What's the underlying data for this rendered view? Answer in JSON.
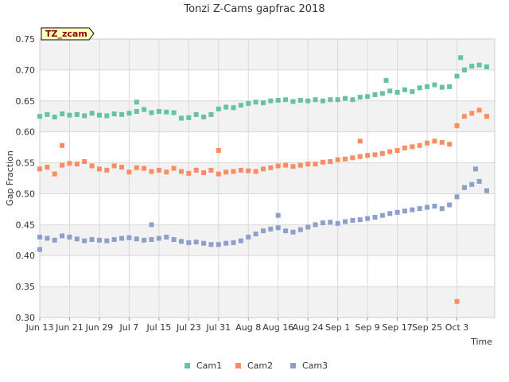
{
  "chart_data": {
    "type": "scatter",
    "title": "Tonzi Z-Cams gapfrac 2018",
    "badge": "TZ_zcam",
    "xlabel": "Time",
    "ylabel": "Gap Fraction",
    "ylim": [
      0.3,
      0.75
    ],
    "y_ticks": [
      "0.30",
      "0.35",
      "0.40",
      "0.45",
      "0.50",
      "0.55",
      "0.60",
      "0.65",
      "0.70",
      "0.75"
    ],
    "x_range_days": [
      "2018-06-13",
      "2018-10-11"
    ],
    "x_ticks": [
      {
        "label": "Jun 13",
        "date": "2018-06-13"
      },
      {
        "label": "Jun 21",
        "date": "2018-06-21"
      },
      {
        "label": "Jun 29",
        "date": "2018-06-29"
      },
      {
        "label": "Jul 7",
        "date": "2018-07-07"
      },
      {
        "label": "Jul 15",
        "date": "2018-07-15"
      },
      {
        "label": "Jul 23",
        "date": "2018-07-23"
      },
      {
        "label": "Jul 31",
        "date": "2018-07-31"
      },
      {
        "label": "Aug 8",
        "date": "2018-08-08"
      },
      {
        "label": "Aug 16",
        "date": "2018-08-16"
      },
      {
        "label": "Aug 24",
        "date": "2018-08-24"
      },
      {
        "label": "Sep 1",
        "date": "2018-09-01"
      },
      {
        "label": "Sep 9",
        "date": "2018-09-09"
      },
      {
        "label": "Sep 17",
        "date": "2018-09-17"
      },
      {
        "label": "Sep 25",
        "date": "2018-09-25"
      },
      {
        "label": "Oct 3",
        "date": "2018-10-03"
      }
    ],
    "grid": true,
    "legend_position": "bottom",
    "series": [
      {
        "name": "Cam1",
        "color": "#66c2a5",
        "points": [
          [
            "2018-06-13",
            0.625
          ],
          [
            "2018-06-15",
            0.628
          ],
          [
            "2018-06-17",
            0.624
          ],
          [
            "2018-06-19",
            0.629
          ],
          [
            "2018-06-21",
            0.627
          ],
          [
            "2018-06-23",
            0.628
          ],
          [
            "2018-06-25",
            0.626
          ],
          [
            "2018-06-27",
            0.63
          ],
          [
            "2018-06-29",
            0.627
          ],
          [
            "2018-07-01",
            0.626
          ],
          [
            "2018-07-03",
            0.629
          ],
          [
            "2018-07-05",
            0.628
          ],
          [
            "2018-07-07",
            0.63
          ],
          [
            "2018-07-09",
            0.633
          ],
          [
            "2018-07-11",
            0.636
          ],
          [
            "2018-07-13",
            0.631
          ],
          [
            "2018-07-15",
            0.633
          ],
          [
            "2018-07-17",
            0.632
          ],
          [
            "2018-07-19",
            0.631
          ],
          [
            "2018-07-21",
            0.622
          ],
          [
            "2018-07-23",
            0.623
          ],
          [
            "2018-07-25",
            0.628
          ],
          [
            "2018-07-27",
            0.624
          ],
          [
            "2018-07-29",
            0.628
          ],
          [
            "2018-07-31",
            0.637
          ],
          [
            "2018-08-02",
            0.64
          ],
          [
            "2018-08-04",
            0.639
          ],
          [
            "2018-08-06",
            0.643
          ],
          [
            "2018-08-08",
            0.646
          ],
          [
            "2018-08-10",
            0.648
          ],
          [
            "2018-08-12",
            0.647
          ],
          [
            "2018-08-14",
            0.65
          ],
          [
            "2018-08-16",
            0.651
          ],
          [
            "2018-08-18",
            0.652
          ],
          [
            "2018-08-20",
            0.649
          ],
          [
            "2018-08-22",
            0.651
          ],
          [
            "2018-08-24",
            0.65
          ],
          [
            "2018-08-26",
            0.652
          ],
          [
            "2018-08-28",
            0.65
          ],
          [
            "2018-08-30",
            0.652
          ],
          [
            "2018-09-01",
            0.652
          ],
          [
            "2018-09-03",
            0.654
          ],
          [
            "2018-09-05",
            0.652
          ],
          [
            "2018-09-07",
            0.656
          ],
          [
            "2018-09-09",
            0.657
          ],
          [
            "2018-09-11",
            0.66
          ],
          [
            "2018-09-13",
            0.662
          ],
          [
            "2018-09-15",
            0.666
          ],
          [
            "2018-09-17",
            0.664
          ],
          [
            "2018-09-19",
            0.668
          ],
          [
            "2018-09-21",
            0.665
          ],
          [
            "2018-09-23",
            0.671
          ],
          [
            "2018-09-25",
            0.673
          ],
          [
            "2018-09-27",
            0.676
          ],
          [
            "2018-09-29",
            0.672
          ],
          [
            "2018-10-01",
            0.673
          ],
          [
            "2018-10-03",
            0.69
          ],
          [
            "2018-10-05",
            0.7
          ],
          [
            "2018-10-07",
            0.706
          ],
          [
            "2018-10-09",
            0.708
          ],
          [
            "2018-10-11",
            0.705
          ],
          [
            "2018-10-04",
            0.72
          ],
          [
            "2018-09-14",
            0.683
          ],
          [
            "2018-07-09",
            0.648
          ]
        ]
      },
      {
        "name": "Cam2",
        "color": "#fc8d62",
        "points": [
          [
            "2018-06-13",
            0.54
          ],
          [
            "2018-06-15",
            0.543
          ],
          [
            "2018-06-17",
            0.532
          ],
          [
            "2018-06-19",
            0.546
          ],
          [
            "2018-06-21",
            0.549
          ],
          [
            "2018-06-23",
            0.548
          ],
          [
            "2018-06-25",
            0.552
          ],
          [
            "2018-06-27",
            0.545
          ],
          [
            "2018-06-29",
            0.54
          ],
          [
            "2018-07-01",
            0.538
          ],
          [
            "2018-07-03",
            0.545
          ],
          [
            "2018-07-05",
            0.543
          ],
          [
            "2018-07-07",
            0.535
          ],
          [
            "2018-07-09",
            0.542
          ],
          [
            "2018-07-11",
            0.541
          ],
          [
            "2018-07-13",
            0.536
          ],
          [
            "2018-07-15",
            0.538
          ],
          [
            "2018-07-17",
            0.535
          ],
          [
            "2018-07-19",
            0.541
          ],
          [
            "2018-07-21",
            0.536
          ],
          [
            "2018-07-23",
            0.533
          ],
          [
            "2018-07-25",
            0.538
          ],
          [
            "2018-07-27",
            0.534
          ],
          [
            "2018-07-29",
            0.538
          ],
          [
            "2018-07-31",
            0.532
          ],
          [
            "2018-08-02",
            0.535
          ],
          [
            "2018-08-04",
            0.536
          ],
          [
            "2018-08-06",
            0.538
          ],
          [
            "2018-08-08",
            0.537
          ],
          [
            "2018-08-10",
            0.536
          ],
          [
            "2018-08-12",
            0.54
          ],
          [
            "2018-08-14",
            0.542
          ],
          [
            "2018-08-16",
            0.545
          ],
          [
            "2018-08-18",
            0.546
          ],
          [
            "2018-08-20",
            0.544
          ],
          [
            "2018-08-22",
            0.546
          ],
          [
            "2018-08-24",
            0.548
          ],
          [
            "2018-08-26",
            0.548
          ],
          [
            "2018-08-28",
            0.551
          ],
          [
            "2018-08-30",
            0.552
          ],
          [
            "2018-09-01",
            0.555
          ],
          [
            "2018-09-03",
            0.556
          ],
          [
            "2018-09-05",
            0.558
          ],
          [
            "2018-09-07",
            0.56
          ],
          [
            "2018-09-09",
            0.562
          ],
          [
            "2018-09-11",
            0.563
          ],
          [
            "2018-09-13",
            0.565
          ],
          [
            "2018-09-15",
            0.568
          ],
          [
            "2018-09-17",
            0.57
          ],
          [
            "2018-09-19",
            0.574
          ],
          [
            "2018-09-21",
            0.576
          ],
          [
            "2018-09-23",
            0.578
          ],
          [
            "2018-09-25",
            0.582
          ],
          [
            "2018-09-27",
            0.585
          ],
          [
            "2018-09-29",
            0.583
          ],
          [
            "2018-10-01",
            0.58
          ],
          [
            "2018-10-03",
            0.61
          ],
          [
            "2018-10-05",
            0.625
          ],
          [
            "2018-10-07",
            0.63
          ],
          [
            "2018-10-09",
            0.635
          ],
          [
            "2018-10-11",
            0.625
          ],
          [
            "2018-10-03",
            0.326
          ],
          [
            "2018-06-19",
            0.578
          ],
          [
            "2018-07-31",
            0.57
          ],
          [
            "2018-09-07",
            0.585
          ]
        ]
      },
      {
        "name": "Cam3",
        "color": "#8da0cb",
        "points": [
          [
            "2018-06-13",
            0.43
          ],
          [
            "2018-06-15",
            0.428
          ],
          [
            "2018-06-17",
            0.425
          ],
          [
            "2018-06-19",
            0.432
          ],
          [
            "2018-06-21",
            0.43
          ],
          [
            "2018-06-23",
            0.427
          ],
          [
            "2018-06-25",
            0.424
          ],
          [
            "2018-06-27",
            0.426
          ],
          [
            "2018-06-29",
            0.425
          ],
          [
            "2018-07-01",
            0.424
          ],
          [
            "2018-07-03",
            0.426
          ],
          [
            "2018-07-05",
            0.428
          ],
          [
            "2018-07-07",
            0.429
          ],
          [
            "2018-07-09",
            0.427
          ],
          [
            "2018-07-11",
            0.425
          ],
          [
            "2018-07-13",
            0.426
          ],
          [
            "2018-07-15",
            0.428
          ],
          [
            "2018-07-17",
            0.43
          ],
          [
            "2018-07-19",
            0.426
          ],
          [
            "2018-07-21",
            0.423
          ],
          [
            "2018-07-23",
            0.421
          ],
          [
            "2018-07-25",
            0.422
          ],
          [
            "2018-07-27",
            0.42
          ],
          [
            "2018-07-29",
            0.418
          ],
          [
            "2018-07-31",
            0.418
          ],
          [
            "2018-08-02",
            0.42
          ],
          [
            "2018-08-04",
            0.421
          ],
          [
            "2018-08-06",
            0.424
          ],
          [
            "2018-08-08",
            0.43
          ],
          [
            "2018-08-10",
            0.435
          ],
          [
            "2018-08-12",
            0.44
          ],
          [
            "2018-08-14",
            0.443
          ],
          [
            "2018-08-16",
            0.445
          ],
          [
            "2018-08-18",
            0.44
          ],
          [
            "2018-08-20",
            0.438
          ],
          [
            "2018-08-22",
            0.442
          ],
          [
            "2018-08-24",
            0.446
          ],
          [
            "2018-08-26",
            0.45
          ],
          [
            "2018-08-28",
            0.453
          ],
          [
            "2018-08-30",
            0.454
          ],
          [
            "2018-09-01",
            0.452
          ],
          [
            "2018-09-03",
            0.455
          ],
          [
            "2018-09-05",
            0.457
          ],
          [
            "2018-09-07",
            0.458
          ],
          [
            "2018-09-09",
            0.46
          ],
          [
            "2018-09-11",
            0.462
          ],
          [
            "2018-09-13",
            0.465
          ],
          [
            "2018-09-15",
            0.468
          ],
          [
            "2018-09-17",
            0.47
          ],
          [
            "2018-09-19",
            0.472
          ],
          [
            "2018-09-21",
            0.474
          ],
          [
            "2018-09-23",
            0.476
          ],
          [
            "2018-09-25",
            0.478
          ],
          [
            "2018-09-27",
            0.48
          ],
          [
            "2018-09-29",
            0.476
          ],
          [
            "2018-10-01",
            0.482
          ],
          [
            "2018-10-03",
            0.495
          ],
          [
            "2018-10-05",
            0.51
          ],
          [
            "2018-10-07",
            0.515
          ],
          [
            "2018-10-09",
            0.52
          ],
          [
            "2018-10-11",
            0.505
          ],
          [
            "2018-10-08",
            0.54
          ],
          [
            "2018-07-13",
            0.45
          ],
          [
            "2018-08-16",
            0.465
          ],
          [
            "2018-06-13",
            0.41
          ]
        ]
      }
    ]
  }
}
